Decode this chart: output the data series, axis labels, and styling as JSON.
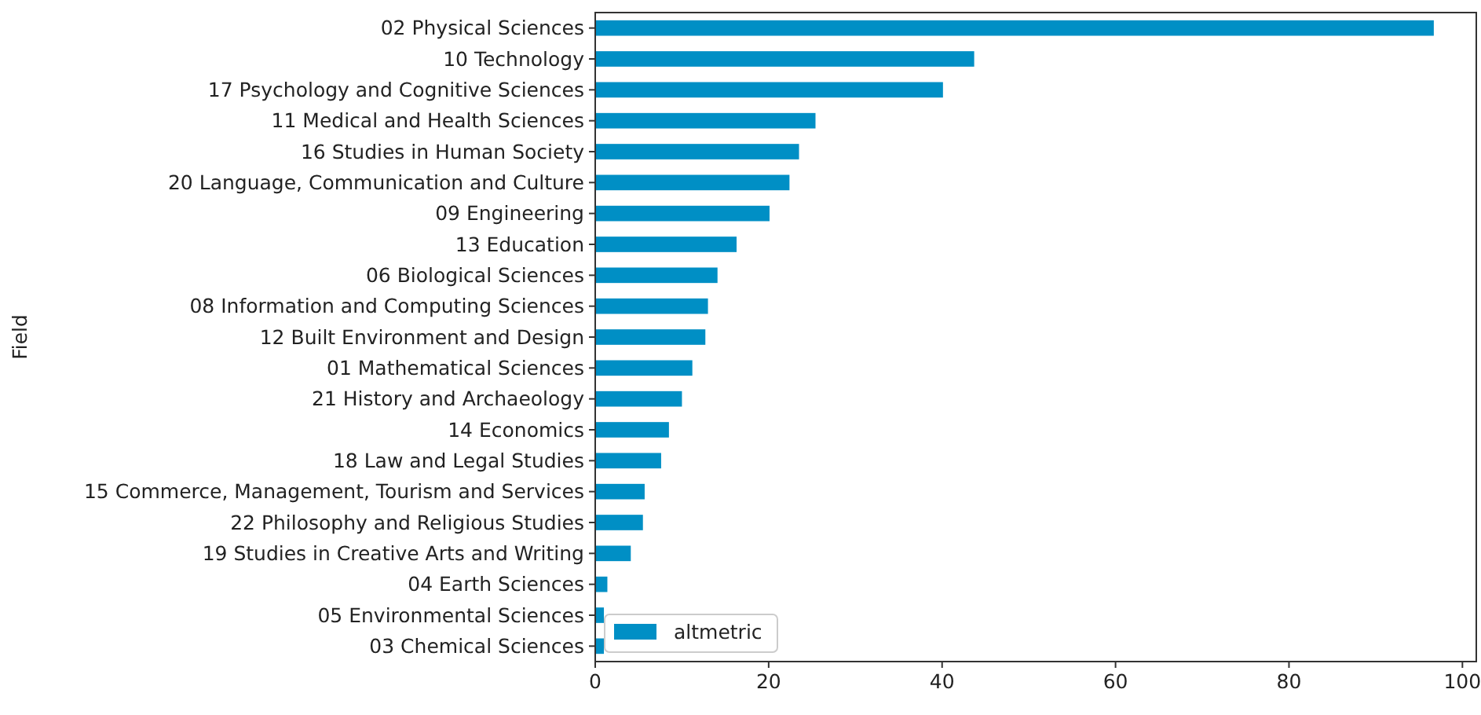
{
  "chart_data": {
    "type": "bar",
    "orientation": "horizontal",
    "ylabel": "Field",
    "categories": [
      "02 Physical Sciences",
      "10 Technology",
      "17 Psychology and Cognitive Sciences",
      "11 Medical and Health Sciences",
      "16 Studies in Human Society",
      "20 Language, Communication and Culture",
      "09 Engineering",
      "13 Education",
      "06 Biological Sciences",
      "08 Information and Computing Sciences",
      "12 Built Environment and Design",
      "01 Mathematical Sciences",
      "21 History and Archaeology",
      "14 Economics",
      "18 Law and Legal Studies",
      "15 Commerce, Management, Tourism and Services",
      "22 Philosophy and Religious Studies",
      "19 Studies in Creative Arts and Writing",
      "04 Earth Sciences",
      "05 Environmental Sciences",
      "03 Chemical Sciences"
    ],
    "series": [
      {
        "name": "altmetric",
        "color": "#008fc5",
        "values": [
          96.7,
          43.7,
          40.1,
          25.4,
          23.5,
          22.4,
          20.1,
          16.3,
          14.1,
          13.0,
          12.7,
          11.2,
          10.0,
          8.5,
          7.6,
          5.7,
          5.5,
          4.1,
          1.4,
          1.0,
          1.0
        ]
      }
    ],
    "xlim": [
      0,
      101.6
    ],
    "xticks": [
      0,
      20,
      40,
      60,
      80,
      100
    ],
    "legend": "bottom left",
    "grid": false
  }
}
